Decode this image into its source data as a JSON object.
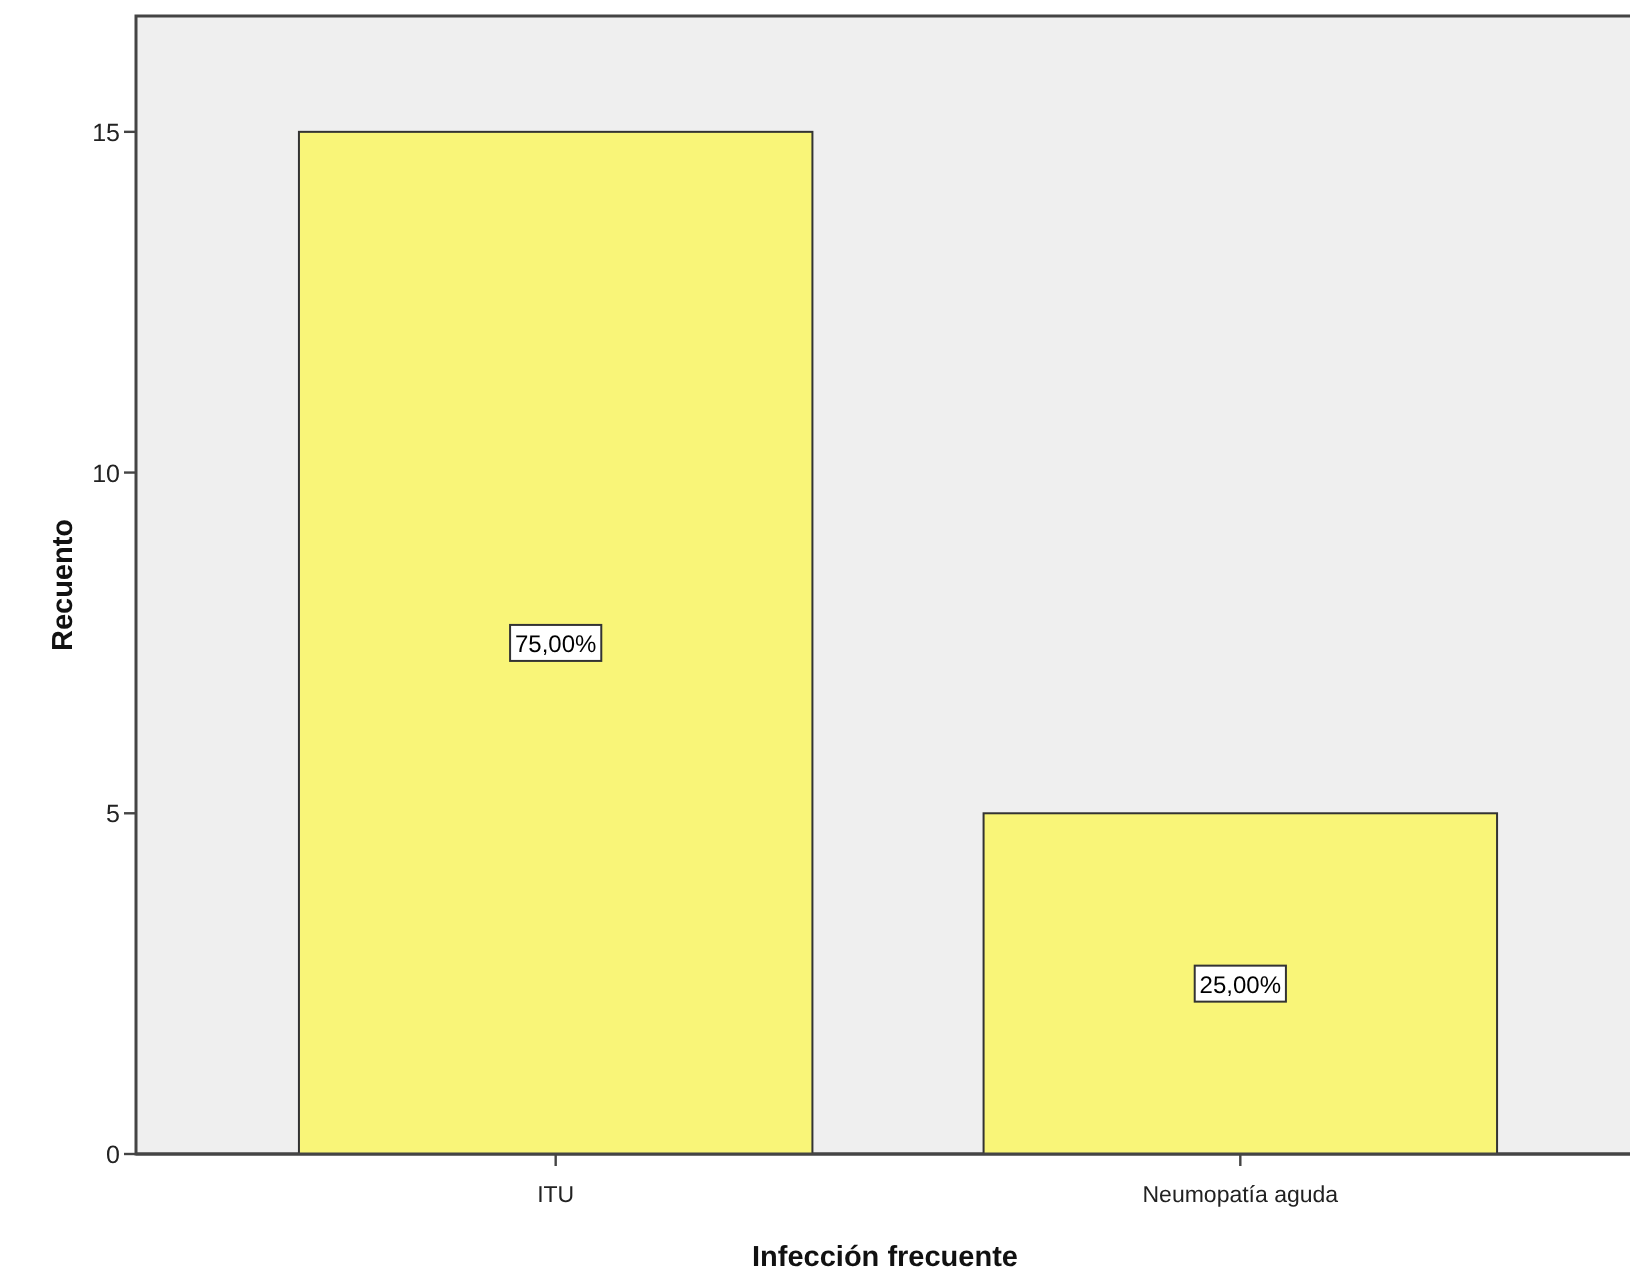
{
  "chart_data": {
    "type": "bar",
    "xlabel": "Infección frecuente",
    "ylabel": "Recuento",
    "categories": [
      "ITU",
      "Neumopatía aguda"
    ],
    "values": [
      15,
      5
    ],
    "color": "#f9f578",
    "ylim": [
      0,
      16.7
    ],
    "yticks": [
      0,
      5,
      10,
      15
    ],
    "annotations": [
      "75,00%",
      "25,00%"
    ]
  }
}
